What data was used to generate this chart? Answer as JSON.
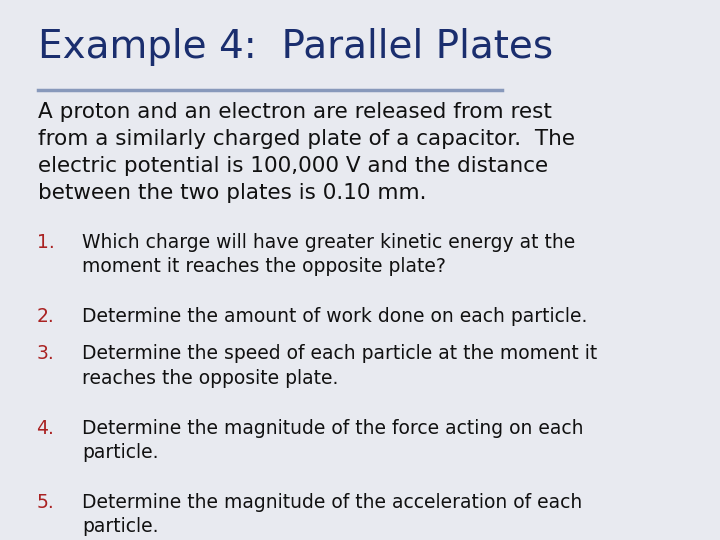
{
  "title": "Example 4:  Parallel Plates",
  "title_color": "#1a2e6e",
  "title_fontsize": 28,
  "separator_color": "#8899bb",
  "bg_color": "#e8eaf0",
  "body_text": "A proton and an electron are released from rest\nfrom a similarly charged plate of a capacitor.  The\nelectric potential is 100,000 V and the distance\nbetween the two plates is 0.10 mm.",
  "body_color": "#111111",
  "body_fontsize": 15.5,
  "list_number_color": "#aa2222",
  "list_text_color": "#111111",
  "list_fontsize": 13.5,
  "list_items": [
    "Which charge will have greater kinetic energy at the\nmoment it reaches the opposite plate?",
    "Determine the amount of work done on each particle.",
    "Determine the speed of each particle at the moment it\nreaches the opposite plate.",
    "Determine the magnitude of the force acting on each\nparticle.",
    "Determine the magnitude of the acceleration of each\nparticle."
  ]
}
